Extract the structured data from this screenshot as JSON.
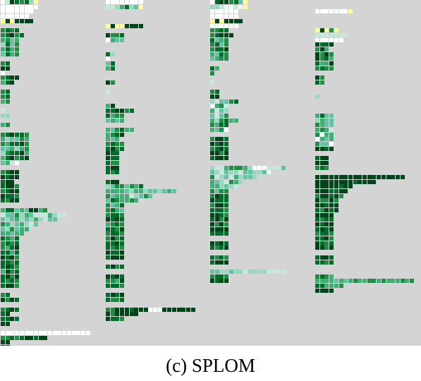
{
  "caption": "(c)  SPLOM",
  "colors": {
    "background": "#d4d4d4",
    "palette": {
      "0": "#ffffff",
      "1": "#edf8f4",
      "2": "#c7e9dc",
      "3": "#99d8c0",
      "4": "#66c2a4",
      "5": "#41ae76",
      "6": "#238b45",
      "7": "#006d2c",
      "8": "#00441b",
      "y": "#ffff99"
    }
  },
  "panels": [
    {
      "name": "panel-1",
      "rows": [
        "0287673y",
        "00000000",
        "0000000",
        "000000",
        "y8y8888",
        "",
        "6767",
        "67867",
        "5645",
        "3746",
        "5756",
        "4756",
        "",
        "67",
        "88",
        "0",
        "6788",
        "578",
        "",
        "67",
        "67",
        "56",
        "",
        "2",
        "33",
        "",
        "56",
        "",
        "678776",
        "534465",
        "657786",
        "445356",
        "367785",
        "578678",
        "4520",
        "",
        "6788",
        "8788",
        "788",
        "7886",
        "6788",
        "8776",
        "7688",
        "",
        "5774548856",
        "24463542225322",
        "434534353244",
        "65345324",
        "436455",
        "55455",
        "7657",
        "6767",
        "6578",
        "7757",
        "8786",
        "7767",
        "7876",
        "5867",
        "7868",
        "7676",
        "7886",
        "",
        "67",
        "8687",
        "",
        "6787",
        "78",
        "7787",
        "88",
        "",
        "0000000000000000000",
        "6676788788",
        "88",
        "88"
      ]
    },
    {
      "name": "panel-2",
      "rows": [
        "00000000",
        "2235734y",
        "",
        "",
        "",
        "y8yy8888",
        "",
        "8667",
        "0544",
        "",
        "",
        "73",
        "0",
        "47",
        "57",
        "",
        "",
        "86",
        "",
        "2",
        "",
        "",
        "58",
        "778867",
        "7566",
        "4545",
        "",
        "546755",
        "5678",
        "545",
        "6766",
        "7867",
        "877",
        "877",
        "766",
        "788",
        "767",
        "",
        "788",
        "34664657",
        "555543553443454",
        "6455523464",
        "4765565",
        "6457",
        "6754",
        "6776",
        "8787",
        "5676",
        "7768",
        "6776",
        "6867",
        "7787",
        "7676",
        "8778",
        "7888",
        "",
        "7867",
        "",
        "8787",
        "6658",
        "7776",
        "",
        "7878",
        "7667",
        "",
        "6688878880008888888",
        "8688888",
        "8776"
      ]
    },
    {
      "name": "panel-3",
      "rows": [
        "0788674y",
        "3321021y",
        "000000",
        "000000",
        "y8y8888",
        "000000",
        "6677",
        "67888",
        "7456",
        "6746",
        "6778",
        "5476",
        "4566",
        "",
        "75",
        "6",
        "",
        "2",
        "",
        "67",
        "88",
        "324467",
        "0562",
        "5243",
        "4246",
        "536755",
        "6577",
        "5460",
        "",
        "6887",
        "8787",
        "6787",
        "8868",
        "7888",
        "",
        "3225666530002224",
        "4324332443341",
        "6234253443",
        "5432653",
        "553432",
        "6466",
        "6877",
        "8777",
        "6887",
        "7776",
        "8876",
        "7868",
        "8686",
        "8888",
        "7777",
        "",
        "8787",
        "7678",
        "",
        "7676",
        "7888",
        "",
        "4433433233332222",
        "6776",
        "8788"
      ]
    },
    {
      "name": "panel-4",
      "rows": [
        "",
        "",
        "0000000y",
        "",
        "",
        "",
        "y8y6y",
        "2222222",
        "000000",
        "8778",
        "685",
        "8686",
        "8675",
        "7558",
        "6766",
        "",
        "86",
        "76",
        "",
        "",
        "3",
        "",
        "",
        "",
        "5744",
        "3544",
        "6544",
        "5652",
        "6055",
        "0545",
        "6440",
        "8878",
        "",
        "788",
        "888",
        "676",
        "",
        "8888888888888888888",
        "8888888878888",
        "88888788",
        "8887788",
        "688786",
        "86686",
        "88788",
        "76878",
        "8888",
        "7677",
        "8788",
        "7878",
        "6776",
        "7786",
        "8767",
        "8868",
        "",
        "7887",
        "7767",
        "",
        "",
        "6765",
        "555545456556656555656",
        "775556",
        "8888"
      ]
    }
  ]
}
